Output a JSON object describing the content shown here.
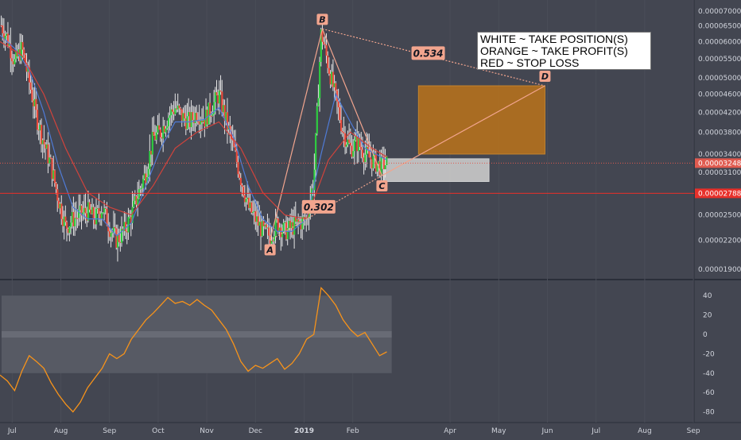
{
  "chart_data": [
    {
      "type": "candlestick",
      "title": "",
      "x_ticks": [
        {
          "label": "Jul",
          "pos": 0.5
        },
        {
          "label": "Aug",
          "pos": 2.5
        },
        {
          "label": "Sep",
          "pos": 4.5
        },
        {
          "label": "Oct",
          "pos": 6.5
        },
        {
          "label": "Nov",
          "pos": 8.5
        },
        {
          "label": "Dec",
          "pos": 10.5
        },
        {
          "label": "2019",
          "pos": 12.5,
          "bold": true
        },
        {
          "label": "Feb",
          "pos": 14.5
        },
        {
          "label": "Apr",
          "pos": 18.5
        },
        {
          "label": "May",
          "pos": 20.5
        },
        {
          "label": "Jun",
          "pos": 22.5
        },
        {
          "label": "Jul",
          "pos": 24.5
        },
        {
          "label": "Aug",
          "pos": 26.5
        },
        {
          "label": "Sep",
          "pos": 28.5
        }
      ],
      "y_ticks": [
        "0.00007000",
        "0.00006500",
        "0.00006000",
        "0.00005500",
        "0.00005000",
        "0.00004600",
        "0.00004200",
        "0.00003800",
        "0.00003400",
        "0.00003100",
        "0.00002500",
        "0.00002200",
        "0.00001900"
      ],
      "y_tick_values": [
        7000,
        6500,
        6000,
        5500,
        5000,
        4600,
        4200,
        3800,
        3400,
        3100,
        2500,
        2200,
        1900
      ],
      "scale": "log",
      "unit_note": "values in units of 1e-8",
      "current_price": {
        "label": "0.00003248",
        "value": 3248
      },
      "stop_loss": {
        "label": "0.00002788",
        "value": 2788
      },
      "close_series": [
        {
          "t": 0.0,
          "v": 6600
        },
        {
          "t": 0.3,
          "v": 6100
        },
        {
          "t": 0.6,
          "v": 5400
        },
        {
          "t": 0.9,
          "v": 5800
        },
        {
          "t": 1.2,
          "v": 4900
        },
        {
          "t": 1.5,
          "v": 4100
        },
        {
          "t": 1.8,
          "v": 3600
        },
        {
          "t": 2.1,
          "v": 3200
        },
        {
          "t": 2.4,
          "v": 2700
        },
        {
          "t": 2.7,
          "v": 2350
        },
        {
          "t": 3.0,
          "v": 2450
        },
        {
          "t": 3.3,
          "v": 2500
        },
        {
          "t": 3.6,
          "v": 2550
        },
        {
          "t": 3.9,
          "v": 2450
        },
        {
          "t": 4.2,
          "v": 2600
        },
        {
          "t": 4.5,
          "v": 2350
        },
        {
          "t": 4.8,
          "v": 2200
        },
        {
          "t": 5.1,
          "v": 2300
        },
        {
          "t": 5.4,
          "v": 2500
        },
        {
          "t": 5.7,
          "v": 2800
        },
        {
          "t": 6.0,
          "v": 3100
        },
        {
          "t": 6.3,
          "v": 3700
        },
        {
          "t": 6.6,
          "v": 3800
        },
        {
          "t": 6.9,
          "v": 4100
        },
        {
          "t": 7.2,
          "v": 4300
        },
        {
          "t": 7.5,
          "v": 4100
        },
        {
          "t": 7.8,
          "v": 4000
        },
        {
          "t": 8.1,
          "v": 4200
        },
        {
          "t": 8.4,
          "v": 4050
        },
        {
          "t": 8.7,
          "v": 4300
        },
        {
          "t": 9.0,
          "v": 4600
        },
        {
          "t": 9.3,
          "v": 4000
        },
        {
          "t": 9.6,
          "v": 3500
        },
        {
          "t": 9.9,
          "v": 3000
        },
        {
          "t": 10.2,
          "v": 2600
        },
        {
          "t": 10.5,
          "v": 2450
        },
        {
          "t": 10.8,
          "v": 2300
        },
        {
          "t": 11.1,
          "v": 2250
        },
        {
          "t": 11.4,
          "v": 2400
        },
        {
          "t": 11.7,
          "v": 2300
        },
        {
          "t": 12.0,
          "v": 2350
        },
        {
          "t": 12.3,
          "v": 2400
        },
        {
          "t": 12.6,
          "v": 2450
        },
        {
          "t": 12.9,
          "v": 3000
        },
        {
          "t": 13.2,
          "v": 6300
        },
        {
          "t": 13.5,
          "v": 5300
        },
        {
          "t": 13.8,
          "v": 4500
        },
        {
          "t": 14.1,
          "v": 3800
        },
        {
          "t": 14.4,
          "v": 3500
        },
        {
          "t": 14.7,
          "v": 3600
        },
        {
          "t": 15.0,
          "v": 3400
        },
        {
          "t": 15.3,
          "v": 3300
        },
        {
          "t": 15.6,
          "v": 3200
        },
        {
          "t": 15.9,
          "v": 3248
        }
      ],
      "ema_fast": [
        {
          "t": 0.0,
          "v": 6200
        },
        {
          "t": 0.6,
          "v": 5800
        },
        {
          "t": 1.2,
          "v": 5200
        },
        {
          "t": 1.8,
          "v": 4200
        },
        {
          "t": 2.4,
          "v": 3200
        },
        {
          "t": 3.0,
          "v": 2600
        },
        {
          "t": 3.6,
          "v": 2450
        },
        {
          "t": 4.2,
          "v": 2450
        },
        {
          "t": 4.8,
          "v": 2250
        },
        {
          "t": 5.4,
          "v": 2400
        },
        {
          "t": 6.0,
          "v": 2900
        },
        {
          "t": 6.6,
          "v": 3500
        },
        {
          "t": 7.2,
          "v": 4000
        },
        {
          "t": 7.8,
          "v": 4000
        },
        {
          "t": 8.4,
          "v": 4050
        },
        {
          "t": 9.0,
          "v": 4300
        },
        {
          "t": 9.6,
          "v": 3700
        },
        {
          "t": 10.2,
          "v": 2900
        },
        {
          "t": 10.8,
          "v": 2450
        },
        {
          "t": 11.4,
          "v": 2300
        },
        {
          "t": 12.0,
          "v": 2300
        },
        {
          "t": 12.6,
          "v": 2450
        },
        {
          "t": 13.2,
          "v": 3400
        },
        {
          "t": 13.8,
          "v": 4600
        },
        {
          "t": 14.4,
          "v": 4000
        },
        {
          "t": 15.0,
          "v": 3500
        },
        {
          "t": 15.9,
          "v": 3300
        }
      ],
      "ema_slow": [
        {
          "t": 0.0,
          "v": 6000
        },
        {
          "t": 0.9,
          "v": 5600
        },
        {
          "t": 1.8,
          "v": 4600
        },
        {
          "t": 2.7,
          "v": 3500
        },
        {
          "t": 3.6,
          "v": 2800
        },
        {
          "t": 4.5,
          "v": 2600
        },
        {
          "t": 5.4,
          "v": 2500
        },
        {
          "t": 6.3,
          "v": 2900
        },
        {
          "t": 7.2,
          "v": 3500
        },
        {
          "t": 8.1,
          "v": 3800
        },
        {
          "t": 9.0,
          "v": 4000
        },
        {
          "t": 9.9,
          "v": 3500
        },
        {
          "t": 10.8,
          "v": 2800
        },
        {
          "t": 11.7,
          "v": 2500
        },
        {
          "t": 12.6,
          "v": 2450
        },
        {
          "t": 13.5,
          "v": 3300
        },
        {
          "t": 14.4,
          "v": 3800
        },
        {
          "t": 15.3,
          "v": 3500
        },
        {
          "t": 15.9,
          "v": 3350
        }
      ],
      "pattern_points": [
        {
          "label": "A",
          "t": 11.1,
          "v": 2200
        },
        {
          "label": "B",
          "t": 13.25,
          "v": 6400
        },
        {
          "label": "C",
          "t": 15.7,
          "v": 3050
        },
        {
          "label": "D",
          "t": 22.4,
          "v": 4800
        }
      ],
      "ratios": [
        {
          "label": "0.534",
          "t": 17.6,
          "v": 5650
        },
        {
          "label": "0.302",
          "t": 13.1,
          "v": 2600
        }
      ],
      "zones": [
        {
          "name": "take-profit",
          "t0": 17.2,
          "t1": 22.4,
          "v_top": 4800,
          "v_bottom": 3400,
          "color": "#b2701f"
        },
        {
          "name": "take-position",
          "t0": 15.75,
          "t1": 20.1,
          "v_top": 3320,
          "v_bottom": 2960,
          "color": "#c8c8c8"
        }
      ],
      "legend": [
        "WHITE ~ TAKE POSITION(S)",
        "ORANGE ~ TAKE PROFIT(S)",
        "RED ~ STOP LOSS"
      ]
    },
    {
      "type": "line",
      "title": "",
      "y_ticks": [
        "40",
        "20",
        "0",
        "-20",
        "-40",
        "-60",
        "-80"
      ],
      "y_tick_values": [
        40,
        20,
        0,
        -20,
        -40,
        -60,
        -80
      ],
      "bands": [
        40,
        0,
        -40
      ],
      "series": [
        {
          "color": "#f7931a",
          "points": [
            {
              "t": 0.0,
              "v": -42
            },
            {
              "t": 0.3,
              "v": -48
            },
            {
              "t": 0.6,
              "v": -58
            },
            {
              "t": 0.9,
              "v": -38
            },
            {
              "t": 1.2,
              "v": -22
            },
            {
              "t": 1.5,
              "v": -28
            },
            {
              "t": 1.8,
              "v": -35
            },
            {
              "t": 2.1,
              "v": -50
            },
            {
              "t": 2.4,
              "v": -62
            },
            {
              "t": 2.7,
              "v": -72
            },
            {
              "t": 3.0,
              "v": -80
            },
            {
              "t": 3.3,
              "v": -70
            },
            {
              "t": 3.6,
              "v": -55
            },
            {
              "t": 3.9,
              "v": -45
            },
            {
              "t": 4.2,
              "v": -35
            },
            {
              "t": 4.5,
              "v": -20
            },
            {
              "t": 4.8,
              "v": -25
            },
            {
              "t": 5.1,
              "v": -20
            },
            {
              "t": 5.4,
              "v": -5
            },
            {
              "t": 5.7,
              "v": 5
            },
            {
              "t": 6.0,
              "v": 15
            },
            {
              "t": 6.3,
              "v": 22
            },
            {
              "t": 6.6,
              "v": 30
            },
            {
              "t": 6.9,
              "v": 38
            },
            {
              "t": 7.2,
              "v": 32
            },
            {
              "t": 7.5,
              "v": 34
            },
            {
              "t": 7.8,
              "v": 30
            },
            {
              "t": 8.1,
              "v": 36
            },
            {
              "t": 8.4,
              "v": 30
            },
            {
              "t": 8.7,
              "v": 25
            },
            {
              "t": 9.0,
              "v": 15
            },
            {
              "t": 9.3,
              "v": 5
            },
            {
              "t": 9.6,
              "v": -10
            },
            {
              "t": 9.9,
              "v": -28
            },
            {
              "t": 10.2,
              "v": -38
            },
            {
              "t": 10.5,
              "v": -32
            },
            {
              "t": 10.8,
              "v": -35
            },
            {
              "t": 11.1,
              "v": -30
            },
            {
              "t": 11.4,
              "v": -25
            },
            {
              "t": 11.7,
              "v": -36
            },
            {
              "t": 12.0,
              "v": -30
            },
            {
              "t": 12.3,
              "v": -20
            },
            {
              "t": 12.6,
              "v": -5
            },
            {
              "t": 12.9,
              "v": 0
            },
            {
              "t": 13.2,
              "v": 48
            },
            {
              "t": 13.5,
              "v": 40
            },
            {
              "t": 13.8,
              "v": 30
            },
            {
              "t": 14.1,
              "v": 15
            },
            {
              "t": 14.4,
              "v": 5
            },
            {
              "t": 14.7,
              "v": -2
            },
            {
              "t": 15.0,
              "v": 2
            },
            {
              "t": 15.3,
              "v": -10
            },
            {
              "t": 15.6,
              "v": -22
            },
            {
              "t": 15.9,
              "v": -18
            }
          ]
        }
      ]
    }
  ]
}
